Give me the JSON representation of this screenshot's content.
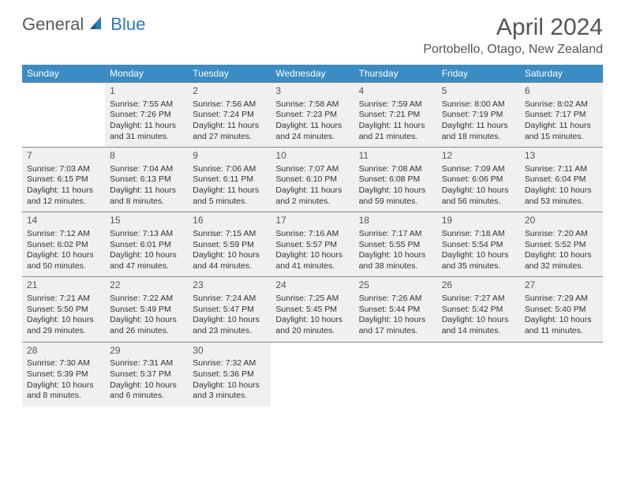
{
  "logo": {
    "general": "General",
    "blue": "Blue"
  },
  "header": {
    "month_title": "April 2024",
    "location": "Portobello, Otago, New Zealand"
  },
  "day_names": [
    "Sunday",
    "Monday",
    "Tuesday",
    "Wednesday",
    "Thursday",
    "Friday",
    "Saturday"
  ],
  "colors": {
    "header_bg": "#3b8bc4",
    "header_fg": "#ffffff",
    "cell_filled_bg": "#eef0f1",
    "border": "#888888",
    "text": "#333333",
    "title_text": "#555555",
    "logo_gray": "#5a5a5a",
    "logo_blue": "#2a7ab8"
  },
  "weeks": [
    [
      {
        "day": "",
        "lines": [],
        "filled": false
      },
      {
        "day": "1",
        "lines": [
          "Sunrise: 7:55 AM",
          "Sunset: 7:26 PM",
          "Daylight: 11 hours",
          "and 31 minutes."
        ],
        "filled": true
      },
      {
        "day": "2",
        "lines": [
          "Sunrise: 7:56 AM",
          "Sunset: 7:24 PM",
          "Daylight: 11 hours",
          "and 27 minutes."
        ],
        "filled": true
      },
      {
        "day": "3",
        "lines": [
          "Sunrise: 7:58 AM",
          "Sunset: 7:23 PM",
          "Daylight: 11 hours",
          "and 24 minutes."
        ],
        "filled": true
      },
      {
        "day": "4",
        "lines": [
          "Sunrise: 7:59 AM",
          "Sunset: 7:21 PM",
          "Daylight: 11 hours",
          "and 21 minutes."
        ],
        "filled": true
      },
      {
        "day": "5",
        "lines": [
          "Sunrise: 8:00 AM",
          "Sunset: 7:19 PM",
          "Daylight: 11 hours",
          "and 18 minutes."
        ],
        "filled": true
      },
      {
        "day": "6",
        "lines": [
          "Sunrise: 8:02 AM",
          "Sunset: 7:17 PM",
          "Daylight: 11 hours",
          "and 15 minutes."
        ],
        "filled": true
      }
    ],
    [
      {
        "day": "7",
        "lines": [
          "Sunrise: 7:03 AM",
          "Sunset: 6:15 PM",
          "Daylight: 11 hours",
          "and 12 minutes."
        ],
        "filled": true
      },
      {
        "day": "8",
        "lines": [
          "Sunrise: 7:04 AM",
          "Sunset: 6:13 PM",
          "Daylight: 11 hours",
          "and 8 minutes."
        ],
        "filled": true
      },
      {
        "day": "9",
        "lines": [
          "Sunrise: 7:06 AM",
          "Sunset: 6:11 PM",
          "Daylight: 11 hours",
          "and 5 minutes."
        ],
        "filled": true
      },
      {
        "day": "10",
        "lines": [
          "Sunrise: 7:07 AM",
          "Sunset: 6:10 PM",
          "Daylight: 11 hours",
          "and 2 minutes."
        ],
        "filled": true
      },
      {
        "day": "11",
        "lines": [
          "Sunrise: 7:08 AM",
          "Sunset: 6:08 PM",
          "Daylight: 10 hours",
          "and 59 minutes."
        ],
        "filled": true
      },
      {
        "day": "12",
        "lines": [
          "Sunrise: 7:09 AM",
          "Sunset: 6:06 PM",
          "Daylight: 10 hours",
          "and 56 minutes."
        ],
        "filled": true
      },
      {
        "day": "13",
        "lines": [
          "Sunrise: 7:11 AM",
          "Sunset: 6:04 PM",
          "Daylight: 10 hours",
          "and 53 minutes."
        ],
        "filled": true
      }
    ],
    [
      {
        "day": "14",
        "lines": [
          "Sunrise: 7:12 AM",
          "Sunset: 6:02 PM",
          "Daylight: 10 hours",
          "and 50 minutes."
        ],
        "filled": true
      },
      {
        "day": "15",
        "lines": [
          "Sunrise: 7:13 AM",
          "Sunset: 6:01 PM",
          "Daylight: 10 hours",
          "and 47 minutes."
        ],
        "filled": true
      },
      {
        "day": "16",
        "lines": [
          "Sunrise: 7:15 AM",
          "Sunset: 5:59 PM",
          "Daylight: 10 hours",
          "and 44 minutes."
        ],
        "filled": true
      },
      {
        "day": "17",
        "lines": [
          "Sunrise: 7:16 AM",
          "Sunset: 5:57 PM",
          "Daylight: 10 hours",
          "and 41 minutes."
        ],
        "filled": true
      },
      {
        "day": "18",
        "lines": [
          "Sunrise: 7:17 AM",
          "Sunset: 5:55 PM",
          "Daylight: 10 hours",
          "and 38 minutes."
        ],
        "filled": true
      },
      {
        "day": "19",
        "lines": [
          "Sunrise: 7:18 AM",
          "Sunset: 5:54 PM",
          "Daylight: 10 hours",
          "and 35 minutes."
        ],
        "filled": true
      },
      {
        "day": "20",
        "lines": [
          "Sunrise: 7:20 AM",
          "Sunset: 5:52 PM",
          "Daylight: 10 hours",
          "and 32 minutes."
        ],
        "filled": true
      }
    ],
    [
      {
        "day": "21",
        "lines": [
          "Sunrise: 7:21 AM",
          "Sunset: 5:50 PM",
          "Daylight: 10 hours",
          "and 29 minutes."
        ],
        "filled": true
      },
      {
        "day": "22",
        "lines": [
          "Sunrise: 7:22 AM",
          "Sunset: 5:49 PM",
          "Daylight: 10 hours",
          "and 26 minutes."
        ],
        "filled": true
      },
      {
        "day": "23",
        "lines": [
          "Sunrise: 7:24 AM",
          "Sunset: 5:47 PM",
          "Daylight: 10 hours",
          "and 23 minutes."
        ],
        "filled": true
      },
      {
        "day": "24",
        "lines": [
          "Sunrise: 7:25 AM",
          "Sunset: 5:45 PM",
          "Daylight: 10 hours",
          "and 20 minutes."
        ],
        "filled": true
      },
      {
        "day": "25",
        "lines": [
          "Sunrise: 7:26 AM",
          "Sunset: 5:44 PM",
          "Daylight: 10 hours",
          "and 17 minutes."
        ],
        "filled": true
      },
      {
        "day": "26",
        "lines": [
          "Sunrise: 7:27 AM",
          "Sunset: 5:42 PM",
          "Daylight: 10 hours",
          "and 14 minutes."
        ],
        "filled": true
      },
      {
        "day": "27",
        "lines": [
          "Sunrise: 7:29 AM",
          "Sunset: 5:40 PM",
          "Daylight: 10 hours",
          "and 11 minutes."
        ],
        "filled": true
      }
    ],
    [
      {
        "day": "28",
        "lines": [
          "Sunrise: 7:30 AM",
          "Sunset: 5:39 PM",
          "Daylight: 10 hours",
          "and 8 minutes."
        ],
        "filled": true
      },
      {
        "day": "29",
        "lines": [
          "Sunrise: 7:31 AM",
          "Sunset: 5:37 PM",
          "Daylight: 10 hours",
          "and 6 minutes."
        ],
        "filled": true
      },
      {
        "day": "30",
        "lines": [
          "Sunrise: 7:32 AM",
          "Sunset: 5:36 PM",
          "Daylight: 10 hours",
          "and 3 minutes."
        ],
        "filled": true
      },
      {
        "day": "",
        "lines": [],
        "filled": false
      },
      {
        "day": "",
        "lines": [],
        "filled": false
      },
      {
        "day": "",
        "lines": [],
        "filled": false
      },
      {
        "day": "",
        "lines": [],
        "filled": false
      }
    ]
  ]
}
